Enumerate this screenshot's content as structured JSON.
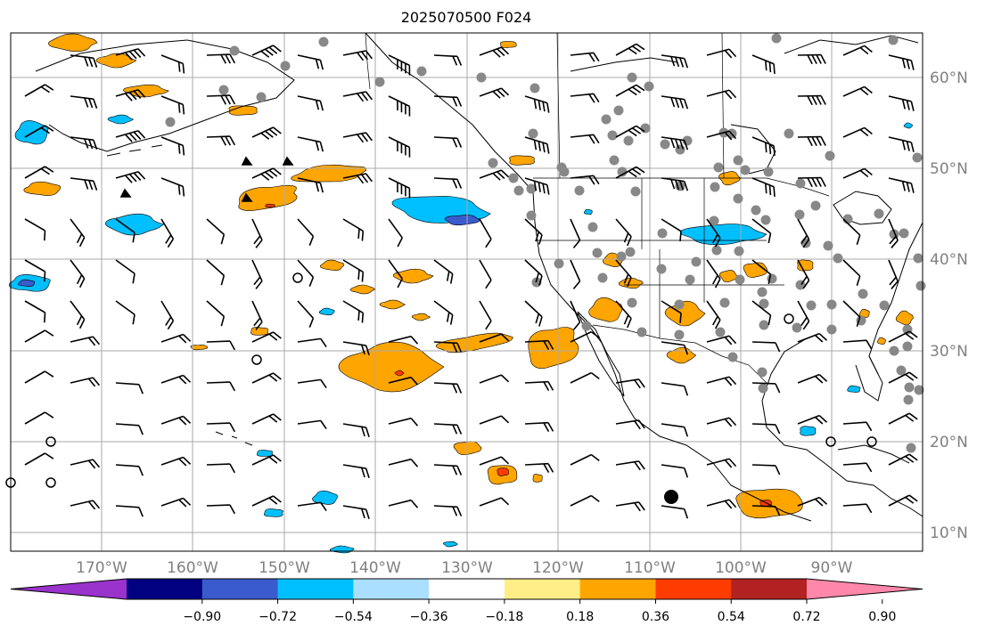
{
  "title": "2025070500 F024",
  "lon_labels": [
    "170°W",
    "160°W",
    "150°W",
    "140°W",
    "130°W",
    "120°W",
    "110°W",
    "100°W",
    "90°W"
  ],
  "lat_labels": [
    "60°N",
    "50°N",
    "40°N",
    "30°N",
    "20°N",
    "10°N"
  ],
  "colorbar": {
    "colors": [
      "#9933cc",
      "#000080",
      "#3a5bcc",
      "#00bfff",
      "#abdfff",
      "#ffffff",
      "#ffee88",
      "#ffa500",
      "#ff3c00",
      "#b22222",
      "#ff88aa"
    ],
    "tick_labels": [
      "−0.90",
      "−0.72",
      "−0.54",
      "−0.36",
      "−0.18",
      "0.18",
      "0.36",
      "0.54",
      "0.72",
      "0.90"
    ],
    "extend": "both"
  },
  "colors": {
    "orange": "#ffa500",
    "yellow": "#ffee88",
    "red": "#ff3c00",
    "blue": "#00bfff",
    "lightblue": "#abdfff",
    "royal": "#3a5bcc",
    "station": "#888888",
    "grid": "#aaaaaa",
    "label_gray": "#808080"
  }
}
